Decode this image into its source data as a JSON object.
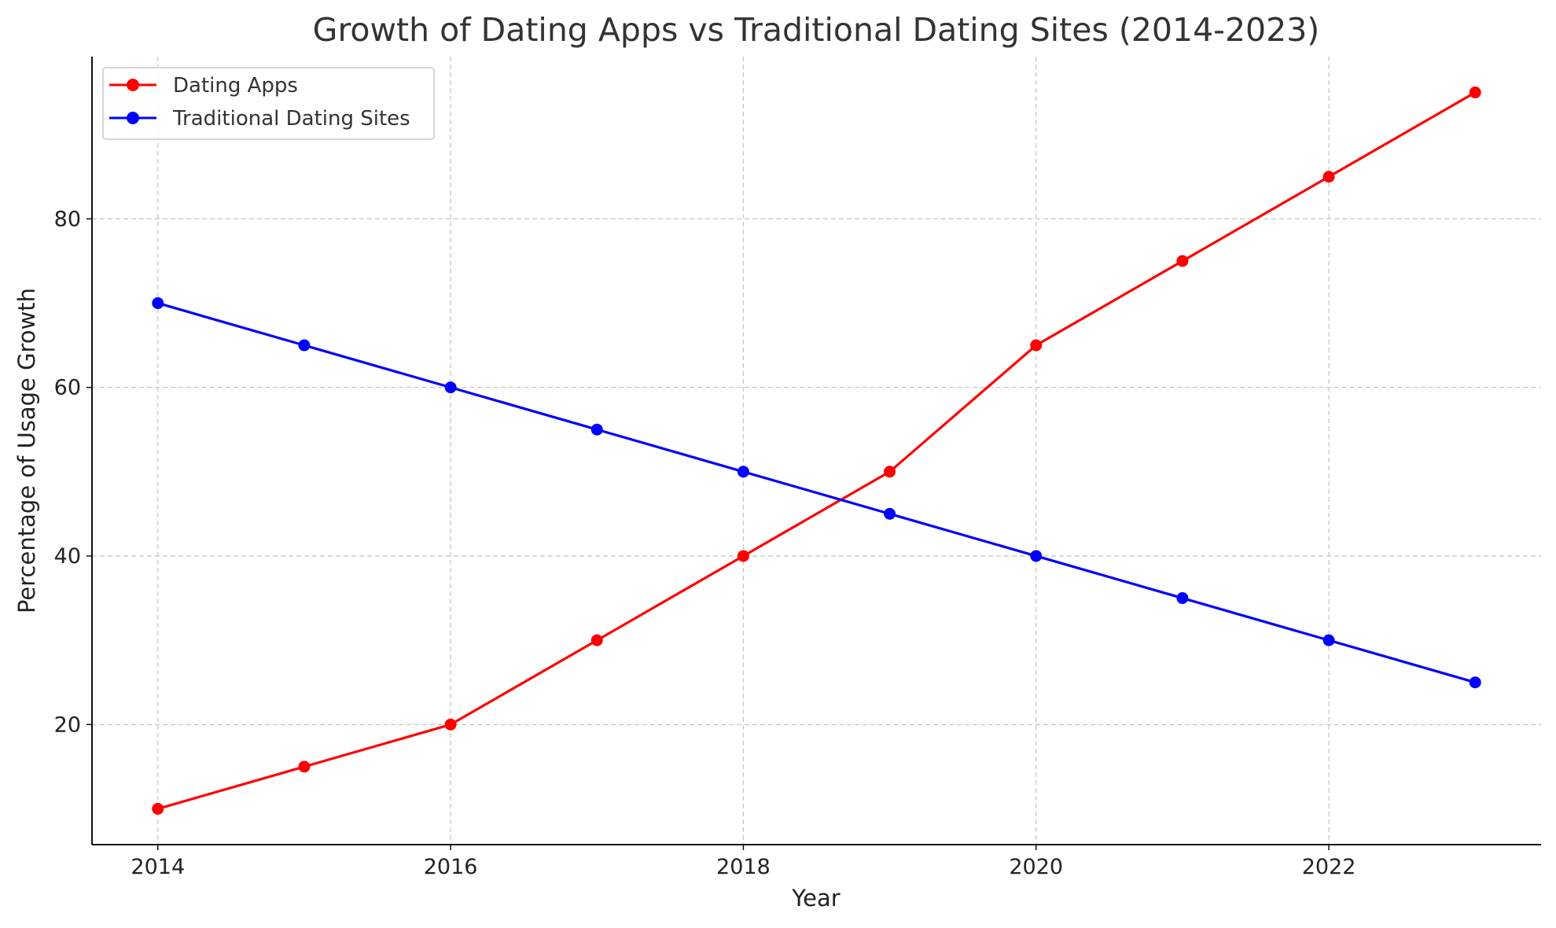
{
  "chart_data": {
    "type": "line",
    "title": "Growth of Dating Apps vs Traditional Dating Sites (2014-2023)",
    "xlabel": "Year",
    "ylabel": "Percentage of Usage Growth",
    "x": [
      2014,
      2015,
      2016,
      2017,
      2018,
      2019,
      2020,
      2021,
      2022,
      2023
    ],
    "xticks": [
      "2014",
      "2016",
      "2018",
      "2020",
      "2022"
    ],
    "yticks": [
      "20",
      "40",
      "60",
      "80"
    ],
    "xlim": [
      2013.55,
      2023.45
    ],
    "ylim": [
      5.75,
      99.25
    ],
    "grid": true,
    "legend_position": "top-left",
    "series": [
      {
        "name": "Dating Apps",
        "color": "#ff0000",
        "values": [
          10,
          15,
          20,
          30,
          40,
          50,
          65,
          75,
          85,
          95
        ]
      },
      {
        "name": "Traditional Dating Sites",
        "color": "#0000ff",
        "values": [
          70,
          65,
          60,
          55,
          50,
          45,
          40,
          35,
          30,
          25
        ]
      }
    ]
  }
}
